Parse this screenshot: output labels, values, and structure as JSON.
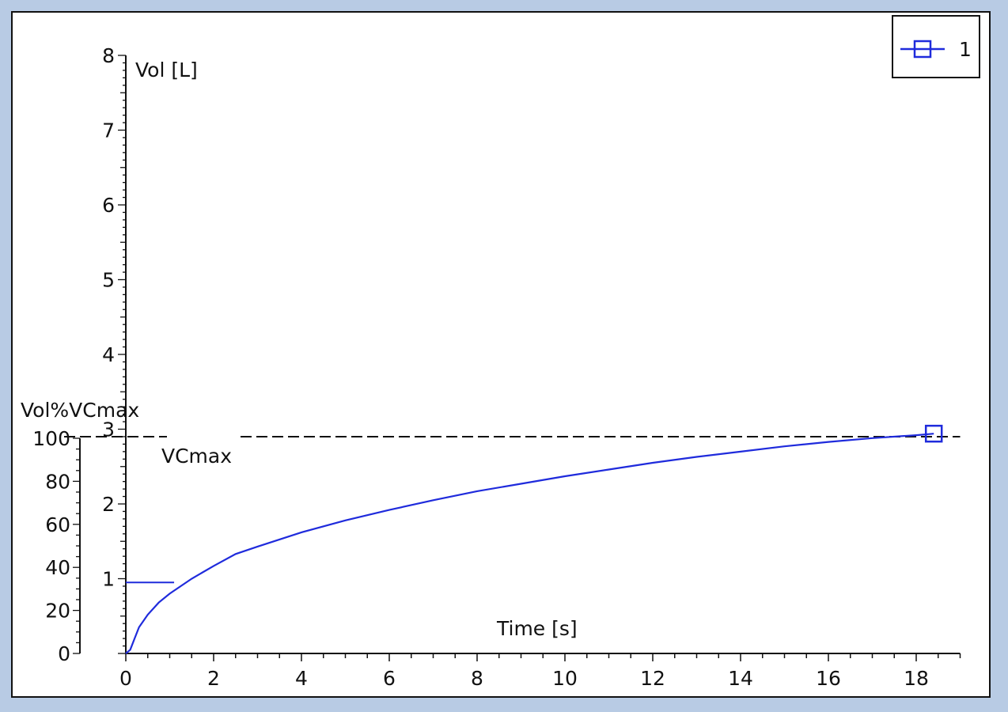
{
  "chart_data": {
    "type": "line",
    "xlabel": "Time [s]",
    "ylabel": "Vol [L]",
    "y2label": "Vol%VCmax",
    "xlim": [
      0,
      19
    ],
    "ylim": [
      0,
      8
    ],
    "y2lim": [
      0,
      100
    ],
    "x_ticks": [
      0,
      2,
      4,
      6,
      8,
      10,
      12,
      14,
      16,
      18
    ],
    "y_ticks": [
      1,
      2,
      3,
      4,
      5,
      6,
      7,
      8
    ],
    "y2_ticks": [
      0,
      20,
      40,
      60,
      80,
      100
    ],
    "reference_line": {
      "label": "VCmax",
      "y": 2.9,
      "style": "dashed"
    },
    "colors": {
      "series": "#1f2bdc",
      "axis": "#111111",
      "reference": "#111111"
    },
    "legend": {
      "position": "top-right",
      "marker": "square"
    },
    "series": [
      {
        "name": "1",
        "marker_at_end": true,
        "x": [
          0,
          0.1,
          0.2,
          0.3,
          0.5,
          0.75,
          1.0,
          1.5,
          2.0,
          2.5,
          3.0,
          4.0,
          5.0,
          6.0,
          7.0,
          8.0,
          9.0,
          10.0,
          11.0,
          12.0,
          13.0,
          14.0,
          15.0,
          16.0,
          17.0,
          18.0,
          18.4
        ],
        "y": [
          0,
          0.05,
          0.2,
          0.35,
          0.52,
          0.68,
          0.8,
          1.0,
          1.17,
          1.33,
          1.43,
          1.62,
          1.78,
          1.92,
          2.05,
          2.17,
          2.27,
          2.37,
          2.46,
          2.55,
          2.63,
          2.7,
          2.77,
          2.83,
          2.88,
          2.92,
          2.94
        ]
      }
    ],
    "step_segment": {
      "y": 0.95,
      "x_start": 0,
      "x_end": 1.1
    }
  }
}
